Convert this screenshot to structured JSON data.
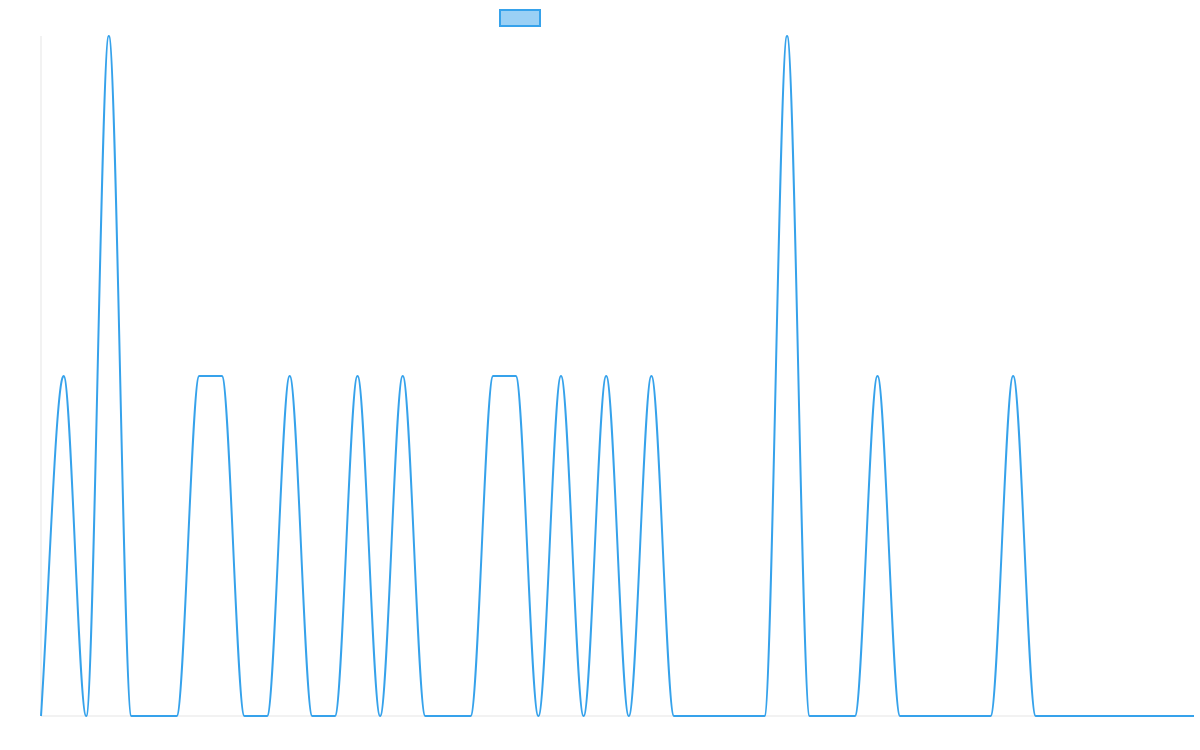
{
  "chart_data": {
    "type": "line",
    "title": "",
    "xlabel": "",
    "ylabel": "",
    "x": [
      0,
      1,
      2,
      3,
      4,
      5,
      6,
      7,
      8,
      9,
      10,
      11,
      12,
      13,
      14,
      15,
      16,
      17,
      18,
      19,
      20,
      21,
      22,
      23,
      24,
      25,
      26,
      27,
      28,
      29,
      30,
      31,
      32,
      33,
      34,
      35,
      36,
      37,
      38,
      39,
      40,
      41,
      42,
      43,
      44,
      45,
      46,
      47,
      48,
      49,
      50,
      51
    ],
    "ylim": [
      0,
      2
    ],
    "series": [
      {
        "name": "",
        "color": "#36a2eb",
        "fill": "#9ad0f5",
        "values": [
          0,
          1,
          0,
          2,
          0,
          0,
          0,
          1,
          1,
          0,
          0,
          1,
          0,
          0,
          1,
          0,
          1,
          0,
          0,
          0,
          1,
          1,
          0,
          1,
          0,
          1,
          0,
          1,
          0,
          0,
          0,
          0,
          0,
          2,
          0,
          0,
          0,
          1,
          0,
          0,
          0,
          0,
          0,
          1,
          0,
          0,
          0,
          0,
          0,
          0,
          0,
          0
        ]
      }
    ],
    "legend": {
      "position": "top",
      "show": true
    },
    "grid": false
  }
}
